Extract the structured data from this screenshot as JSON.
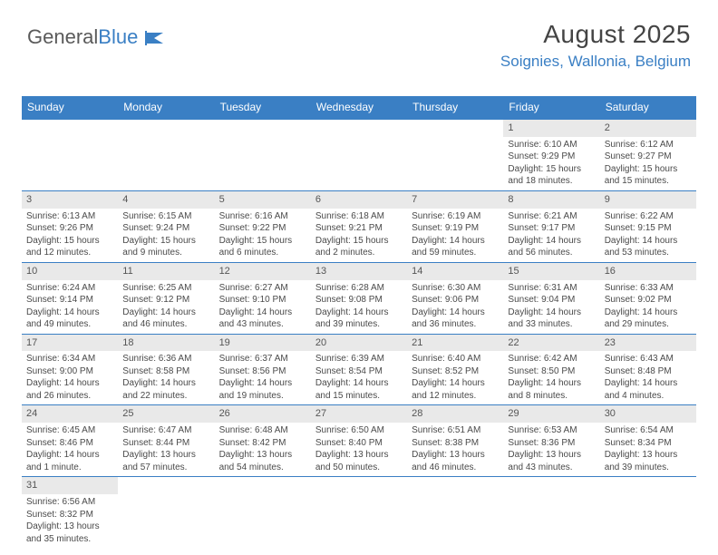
{
  "logo": {
    "text1": "General",
    "text2": "Blue"
  },
  "header": {
    "month": "August 2025",
    "location": "Soignies, Wallonia, Belgium"
  },
  "colors": {
    "accent": "#3a7fc4",
    "daynum_bg": "#e9e9e9",
    "text": "#4a4a4a"
  },
  "table": {
    "columns": [
      "Sunday",
      "Monday",
      "Tuesday",
      "Wednesday",
      "Thursday",
      "Friday",
      "Saturday"
    ],
    "weeks": [
      [
        null,
        null,
        null,
        null,
        null,
        {
          "n": "1",
          "sr": "6:10 AM",
          "ss": "9:29 PM",
          "dl": "15 hours and 18 minutes."
        },
        {
          "n": "2",
          "sr": "6:12 AM",
          "ss": "9:27 PM",
          "dl": "15 hours and 15 minutes."
        }
      ],
      [
        {
          "n": "3",
          "sr": "6:13 AM",
          "ss": "9:26 PM",
          "dl": "15 hours and 12 minutes."
        },
        {
          "n": "4",
          "sr": "6:15 AM",
          "ss": "9:24 PM",
          "dl": "15 hours and 9 minutes."
        },
        {
          "n": "5",
          "sr": "6:16 AM",
          "ss": "9:22 PM",
          "dl": "15 hours and 6 minutes."
        },
        {
          "n": "6",
          "sr": "6:18 AM",
          "ss": "9:21 PM",
          "dl": "15 hours and 2 minutes."
        },
        {
          "n": "7",
          "sr": "6:19 AM",
          "ss": "9:19 PM",
          "dl": "14 hours and 59 minutes."
        },
        {
          "n": "8",
          "sr": "6:21 AM",
          "ss": "9:17 PM",
          "dl": "14 hours and 56 minutes."
        },
        {
          "n": "9",
          "sr": "6:22 AM",
          "ss": "9:15 PM",
          "dl": "14 hours and 53 minutes."
        }
      ],
      [
        {
          "n": "10",
          "sr": "6:24 AM",
          "ss": "9:14 PM",
          "dl": "14 hours and 49 minutes."
        },
        {
          "n": "11",
          "sr": "6:25 AM",
          "ss": "9:12 PM",
          "dl": "14 hours and 46 minutes."
        },
        {
          "n": "12",
          "sr": "6:27 AM",
          "ss": "9:10 PM",
          "dl": "14 hours and 43 minutes."
        },
        {
          "n": "13",
          "sr": "6:28 AM",
          "ss": "9:08 PM",
          "dl": "14 hours and 39 minutes."
        },
        {
          "n": "14",
          "sr": "6:30 AM",
          "ss": "9:06 PM",
          "dl": "14 hours and 36 minutes."
        },
        {
          "n": "15",
          "sr": "6:31 AM",
          "ss": "9:04 PM",
          "dl": "14 hours and 33 minutes."
        },
        {
          "n": "16",
          "sr": "6:33 AM",
          "ss": "9:02 PM",
          "dl": "14 hours and 29 minutes."
        }
      ],
      [
        {
          "n": "17",
          "sr": "6:34 AM",
          "ss": "9:00 PM",
          "dl": "14 hours and 26 minutes."
        },
        {
          "n": "18",
          "sr": "6:36 AM",
          "ss": "8:58 PM",
          "dl": "14 hours and 22 minutes."
        },
        {
          "n": "19",
          "sr": "6:37 AM",
          "ss": "8:56 PM",
          "dl": "14 hours and 19 minutes."
        },
        {
          "n": "20",
          "sr": "6:39 AM",
          "ss": "8:54 PM",
          "dl": "14 hours and 15 minutes."
        },
        {
          "n": "21",
          "sr": "6:40 AM",
          "ss": "8:52 PM",
          "dl": "14 hours and 12 minutes."
        },
        {
          "n": "22",
          "sr": "6:42 AM",
          "ss": "8:50 PM",
          "dl": "14 hours and 8 minutes."
        },
        {
          "n": "23",
          "sr": "6:43 AM",
          "ss": "8:48 PM",
          "dl": "14 hours and 4 minutes."
        }
      ],
      [
        {
          "n": "24",
          "sr": "6:45 AM",
          "ss": "8:46 PM",
          "dl": "14 hours and 1 minute."
        },
        {
          "n": "25",
          "sr": "6:47 AM",
          "ss": "8:44 PM",
          "dl": "13 hours and 57 minutes."
        },
        {
          "n": "26",
          "sr": "6:48 AM",
          "ss": "8:42 PM",
          "dl": "13 hours and 54 minutes."
        },
        {
          "n": "27",
          "sr": "6:50 AM",
          "ss": "8:40 PM",
          "dl": "13 hours and 50 minutes."
        },
        {
          "n": "28",
          "sr": "6:51 AM",
          "ss": "8:38 PM",
          "dl": "13 hours and 46 minutes."
        },
        {
          "n": "29",
          "sr": "6:53 AM",
          "ss": "8:36 PM",
          "dl": "13 hours and 43 minutes."
        },
        {
          "n": "30",
          "sr": "6:54 AM",
          "ss": "8:34 PM",
          "dl": "13 hours and 39 minutes."
        }
      ],
      [
        {
          "n": "31",
          "sr": "6:56 AM",
          "ss": "8:32 PM",
          "dl": "13 hours and 35 minutes."
        },
        null,
        null,
        null,
        null,
        null,
        null
      ]
    ]
  },
  "labels": {
    "sunrise": "Sunrise: ",
    "sunset": "Sunset: ",
    "daylight": "Daylight: "
  }
}
